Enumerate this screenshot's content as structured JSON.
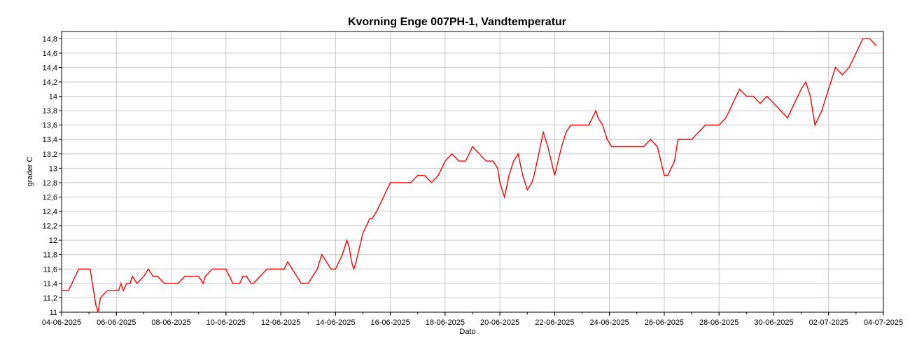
{
  "chart_data": {
    "type": "line",
    "title": "Kvorning Enge 007PH-1, Vandtemperatur",
    "xlabel": "Dato",
    "ylabel": "grader C",
    "grid": true,
    "legend": "none",
    "line_color": "#ff0000",
    "grid_color": "#c8c8c8",
    "xlim": [
      "04-06-2025",
      "04-07-2025"
    ],
    "ylim": [
      11,
      14.9
    ],
    "y_ticks": [
      11,
      11.2,
      11.4,
      11.6,
      11.8,
      12,
      12.2,
      12.4,
      12.6,
      12.8,
      13,
      13.2,
      13.4,
      13.6,
      13.8,
      14,
      14.2,
      14.4,
      14.6,
      14.8
    ],
    "y_tick_labels": [
      "11",
      "11,2",
      "11,4",
      "11,6",
      "11,8",
      "12",
      "12,2",
      "12,4",
      "12,6",
      "12,8",
      "13",
      "13,2",
      "13,4",
      "13,6",
      "13,8",
      "14",
      "14,2",
      "14,4",
      "14,6",
      "14,8"
    ],
    "x_ticks": [
      "04-06-2025",
      "06-06-2025",
      "08-06-2025",
      "10-06-2025",
      "12-06-2025",
      "14-06-2025",
      "16-06-2025",
      "18-06-2025",
      "20-06-2025",
      "22-06-2025",
      "24-06-2025",
      "26-06-2025",
      "28-06-2025",
      "30-06-2025",
      "02-07-2025",
      "04-07-2025"
    ],
    "series": [
      {
        "x": [
          "2025-06-04T00:00",
          "2025-06-04T06:00",
          "2025-06-04T09:00",
          "2025-06-04T12:00",
          "2025-06-04T15:00",
          "2025-06-04T20:00",
          "2025-06-05T01:00",
          "2025-06-05T03:00",
          "2025-06-05T05:00",
          "2025-06-05T06:00",
          "2025-06-05T08:00",
          "2025-06-05T10:00",
          "2025-06-05T16:00",
          "2025-06-05T18:00",
          "2025-06-05T22:00",
          "2025-06-06T02:00",
          "2025-06-06T04:00",
          "2025-06-06T06:00",
          "2025-06-06T09:00",
          "2025-06-06T12:00",
          "2025-06-06T14:00",
          "2025-06-06T18:00",
          "2025-06-07T00:00",
          "2025-06-07T04:00",
          "2025-06-07T08:00",
          "2025-06-07T12:00",
          "2025-06-07T18:00",
          "2025-06-08T06:00",
          "2025-06-08T12:00",
          "2025-06-08T18:00",
          "2025-06-09T00:00",
          "2025-06-09T04:00",
          "2025-06-09T06:00",
          "2025-06-09T12:00",
          "2025-06-09T18:00",
          "2025-06-10T00:00",
          "2025-06-10T03:00",
          "2025-06-10T06:00",
          "2025-06-10T12:00",
          "2025-06-10T15:00",
          "2025-06-10T18:00",
          "2025-06-10T22:00",
          "2025-06-11T00:00",
          "2025-06-11T12:00",
          "2025-06-11T20:00",
          "2025-06-12T00:00",
          "2025-06-12T03:00",
          "2025-06-12T06:00",
          "2025-06-12T10:00",
          "2025-06-12T14:00",
          "2025-06-12T18:00",
          "2025-06-13T00:00",
          "2025-06-13T04:00",
          "2025-06-13T08:00",
          "2025-06-13T12:00",
          "2025-06-13T16:00",
          "2025-06-13T20:00",
          "2025-06-14T00:00",
          "2025-06-14T03:00",
          "2025-06-14T06:00",
          "2025-06-14T08:00",
          "2025-06-14T10:00",
          "2025-06-14T12:00",
          "2025-06-14T14:00",
          "2025-06-14T16:00",
          "2025-06-14T18:00",
          "2025-06-15T00:00",
          "2025-06-15T06:00",
          "2025-06-15T08:00",
          "2025-06-15T12:00",
          "2025-06-15T18:00",
          "2025-06-16T00:00",
          "2025-06-16T06:00",
          "2025-06-16T12:00",
          "2025-06-16T18:00",
          "2025-06-17T00:00",
          "2025-06-17T06:00",
          "2025-06-17T12:00",
          "2025-06-17T18:00",
          "2025-06-18T00:00",
          "2025-06-18T06:00",
          "2025-06-18T12:00",
          "2025-06-18T18:00",
          "2025-06-19T00:00",
          "2025-06-19T06:00",
          "2025-06-19T12:00",
          "2025-06-19T18:00",
          "2025-06-19T22:00",
          "2025-06-20T00:00",
          "2025-06-20T04:00",
          "2025-06-20T08:00",
          "2025-06-20T12:00",
          "2025-06-20T16:00",
          "2025-06-20T20:00",
          "2025-06-21T00:00",
          "2025-06-21T04:00",
          "2025-06-21T06:00",
          "2025-06-21T10:00",
          "2025-06-21T14:00",
          "2025-06-21T18:00",
          "2025-06-22T00:00",
          "2025-06-22T06:00",
          "2025-06-22T10:00",
          "2025-06-22T14:00",
          "2025-06-22T18:00",
          "2025-06-23T00:00",
          "2025-06-23T06:00",
          "2025-06-23T12:00",
          "2025-06-23T14:00",
          "2025-06-23T18:00",
          "2025-06-23T22:00",
          "2025-06-24T02:00",
          "2025-06-24T06:00",
          "2025-06-24T12:00",
          "2025-06-24T18:00",
          "2025-06-25T00:00",
          "2025-06-25T06:00",
          "2025-06-25T12:00",
          "2025-06-25T18:00",
          "2025-06-26T00:00",
          "2025-06-26T03:00",
          "2025-06-26T06:00",
          "2025-06-26T09:00",
          "2025-06-26T12:00",
          "2025-06-26T16:00",
          "2025-06-26T20:00",
          "2025-06-27T00:00",
          "2025-06-27T06:00",
          "2025-06-27T12:00",
          "2025-06-27T18:00",
          "2025-06-28T00:00",
          "2025-06-28T06:00",
          "2025-06-28T12:00",
          "2025-06-28T18:00",
          "2025-06-29T00:00",
          "2025-06-29T06:00",
          "2025-06-29T12:00",
          "2025-06-29T18:00",
          "2025-06-30T00:00",
          "2025-06-30T06:00",
          "2025-06-30T12:00",
          "2025-06-30T18:00",
          "2025-07-01T00:00",
          "2025-07-01T04:00",
          "2025-07-01T08:00",
          "2025-07-01T12:00",
          "2025-07-01T18:00",
          "2025-07-02T00:00",
          "2025-07-02T06:00",
          "2025-07-02T12:00",
          "2025-07-02T18:00",
          "2025-07-03T00:00",
          "2025-07-03T06:00",
          "2025-07-03T12:00",
          "2025-07-03T18:00"
        ],
        "y": [
          11.3,
          11.3,
          11.4,
          11.5,
          11.6,
          11.6,
          11.6,
          11.4,
          11.2,
          11.1,
          11.0,
          11.2,
          11.3,
          11.3,
          11.3,
          11.3,
          11.4,
          11.3,
          11.4,
          11.4,
          11.5,
          11.4,
          11.5,
          11.6,
          11.5,
          11.5,
          11.4,
          11.4,
          11.5,
          11.5,
          11.5,
          11.4,
          11.5,
          11.6,
          11.6,
          11.6,
          11.5,
          11.4,
          11.4,
          11.5,
          11.5,
          11.4,
          11.4,
          11.6,
          11.6,
          11.6,
          11.6,
          11.7,
          11.6,
          11.5,
          11.4,
          11.4,
          11.5,
          11.6,
          11.8,
          11.7,
          11.6,
          11.6,
          11.7,
          11.8,
          11.9,
          12.0,
          11.9,
          11.7,
          11.6,
          11.7,
          12.1,
          12.3,
          12.3,
          12.4,
          12.6,
          12.8,
          12.8,
          12.8,
          12.8,
          12.9,
          12.9,
          12.8,
          12.9,
          13.1,
          13.2,
          13.1,
          13.1,
          13.3,
          13.2,
          13.1,
          13.1,
          13.0,
          12.8,
          12.6,
          12.9,
          13.1,
          13.2,
          12.9,
          12.7,
          12.8,
          12.9,
          13.2,
          13.5,
          13.3,
          12.9,
          13.3,
          13.5,
          13.6,
          13.6,
          13.6,
          13.6,
          13.8,
          13.7,
          13.6,
          13.4,
          13.3,
          13.3,
          13.3,
          13.3,
          13.3,
          13.3,
          13.4,
          13.3,
          12.9,
          12.9,
          13.0,
          13.1,
          13.4,
          13.4,
          13.4,
          13.4,
          13.5,
          13.6,
          13.6,
          13.6,
          13.7,
          13.9,
          14.1,
          14.0,
          14.0,
          13.9,
          14.0,
          13.9,
          13.8,
          13.7,
          13.9,
          14.1,
          14.2,
          14.0,
          13.6,
          13.8,
          14.1,
          14.4,
          14.3,
          14.4,
          14.6,
          14.8,
          14.8,
          14.7
        ]
      }
    ]
  }
}
